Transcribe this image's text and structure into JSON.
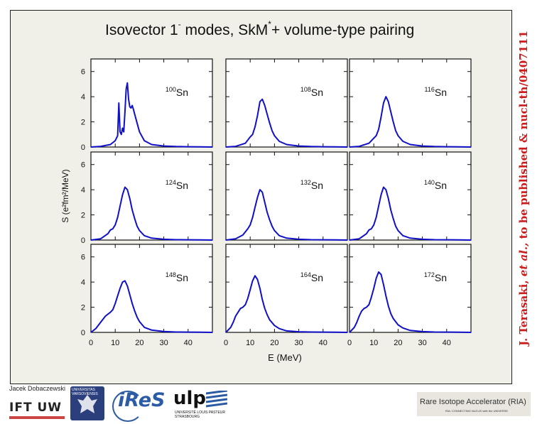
{
  "slide": {
    "title_main": "Isovector 1",
    "title_sup1": "-",
    "title_mid": " modes, SkM",
    "title_sup2": "*",
    "title_end": "+ volume-type pairing",
    "credit_prefix": "J. Terasaki, ",
    "credit_italic": "et al.,",
    "credit_suffix": " to be published & nucl-th/0407111",
    "author": "Jacek Dobaczewski"
  },
  "logos": {
    "ift": "IFT UW",
    "university": "UNIVERSITAS VARSOVIENSIS",
    "ires": "iReS",
    "ulp": "ulp",
    "ulp_sub": "UNIVERSITÉ LOUIS PASTEUR STRASBOURG",
    "ria": "Rare Isotope Accelerator (RIA)",
    "ria_sub": "RIA: CONNECTING NUCLEI with the UNIVERSE"
  },
  "colors": {
    "curve": "#1010c8",
    "credit": "#cc1b1b",
    "background": "#f0f0e8"
  },
  "chart_data": {
    "type": "line",
    "xlabel": "E (MeV)",
    "ylabel": "S (e²fm²/MeV)",
    "xlim": [
      0,
      50
    ],
    "ylim": [
      0,
      7
    ],
    "xticks": [
      0,
      10,
      20,
      30,
      40
    ],
    "yticks": [
      0,
      2,
      4,
      6
    ],
    "grid": false,
    "panels": [
      {
        "mass": "100",
        "element": "Sn",
        "x": [
          0,
          4,
          8,
          10,
          11,
          11.5,
          12,
          12.5,
          13,
          13.5,
          14,
          14.5,
          15,
          15.5,
          16,
          16.5,
          17,
          17.5,
          18,
          19,
          20,
          22,
          25,
          30,
          35,
          40,
          45,
          50
        ],
        "y": [
          0,
          0.05,
          0.2,
          0.5,
          0.9,
          3.5,
          1.2,
          1.0,
          1.5,
          1.2,
          2.8,
          4.6,
          5.1,
          3.8,
          3.2,
          3.1,
          3.3,
          3.0,
          2.6,
          1.9,
          1.2,
          0.5,
          0.2,
          0.08,
          0.04,
          0.02,
          0.01,
          0
        ]
      },
      {
        "mass": "108",
        "element": "Sn",
        "x": [
          0,
          4,
          8,
          10,
          11,
          12,
          13,
          14,
          15,
          16,
          17,
          18,
          19,
          20,
          22,
          25,
          30,
          35,
          40,
          45,
          50
        ],
        "y": [
          0,
          0.05,
          0.3,
          0.8,
          1.0,
          1.6,
          2.5,
          3.6,
          3.8,
          3.3,
          2.6,
          1.9,
          1.3,
          0.9,
          0.45,
          0.2,
          0.08,
          0.04,
          0.02,
          0.01,
          0
        ]
      },
      {
        "mass": "116",
        "element": "Sn",
        "x": [
          0,
          4,
          8,
          10,
          11,
          12,
          13,
          14,
          15,
          16,
          17,
          18,
          19,
          20,
          22,
          25,
          30,
          35,
          40,
          45,
          50
        ],
        "y": [
          0,
          0.05,
          0.3,
          0.7,
          0.9,
          1.4,
          2.4,
          3.5,
          4.0,
          3.6,
          2.8,
          2.0,
          1.3,
          0.9,
          0.45,
          0.2,
          0.08,
          0.04,
          0.02,
          0.01,
          0
        ]
      },
      {
        "mass": "124",
        "element": "Sn",
        "x": [
          0,
          4,
          7,
          8,
          9,
          10,
          11,
          12,
          13,
          14,
          15,
          16,
          17,
          18,
          19,
          20,
          22,
          25,
          30,
          35,
          40,
          45,
          50
        ],
        "y": [
          0,
          0.1,
          0.5,
          0.8,
          0.9,
          1.2,
          1.8,
          2.7,
          3.6,
          4.2,
          4.0,
          3.3,
          2.4,
          1.7,
          1.1,
          0.75,
          0.35,
          0.15,
          0.06,
          0.03,
          0.02,
          0.01,
          0
        ]
      },
      {
        "mass": "132",
        "element": "Sn",
        "x": [
          0,
          4,
          7,
          9,
          10,
          11,
          12,
          13,
          14,
          15,
          16,
          17,
          18,
          19,
          20,
          22,
          25,
          30,
          35,
          40,
          45,
          50
        ],
        "y": [
          0,
          0.1,
          0.4,
          0.9,
          1.2,
          1.8,
          2.6,
          3.4,
          4.0,
          3.8,
          3.0,
          2.2,
          1.6,
          1.1,
          0.75,
          0.35,
          0.15,
          0.06,
          0.03,
          0.02,
          0.01,
          0
        ]
      },
      {
        "mass": "140",
        "element": "Sn",
        "x": [
          0,
          4,
          7,
          8,
          9,
          10,
          11,
          12,
          13,
          14,
          15,
          16,
          17,
          18,
          19,
          20,
          22,
          25,
          30,
          35,
          40,
          45,
          50
        ],
        "y": [
          0,
          0.1,
          0.5,
          0.8,
          0.9,
          1.2,
          1.8,
          2.7,
          3.6,
          4.2,
          4.0,
          3.3,
          2.4,
          1.7,
          1.1,
          0.75,
          0.35,
          0.15,
          0.06,
          0.03,
          0.02,
          0.01,
          0
        ]
      },
      {
        "mass": "148",
        "element": "Sn",
        "x": [
          0,
          2,
          4,
          6,
          8,
          9,
          10,
          11,
          12,
          13,
          14,
          15,
          16,
          17,
          18,
          19,
          20,
          22,
          25,
          30,
          35,
          40,
          45,
          50
        ],
        "y": [
          0,
          0.3,
          0.8,
          1.3,
          1.6,
          1.8,
          2.3,
          2.9,
          3.5,
          4.0,
          4.1,
          3.7,
          3.0,
          2.3,
          1.7,
          1.2,
          0.85,
          0.4,
          0.18,
          0.07,
          0.03,
          0.02,
          0.01,
          0
        ]
      },
      {
        "mass": "164",
        "element": "Sn",
        "x": [
          0,
          2,
          3,
          4,
          5,
          6,
          7,
          8,
          9,
          10,
          11,
          12,
          13,
          14,
          15,
          16,
          17,
          18,
          20,
          22,
          25,
          30,
          35,
          40,
          45,
          50
        ],
        "y": [
          0,
          0.4,
          0.8,
          1.3,
          1.6,
          1.9,
          2.0,
          2.2,
          2.7,
          3.4,
          4.1,
          4.5,
          4.2,
          3.5,
          2.6,
          1.9,
          1.4,
          1.0,
          0.55,
          0.3,
          0.12,
          0.05,
          0.03,
          0.02,
          0.01,
          0
        ]
      },
      {
        "mass": "172",
        "element": "Sn",
        "x": [
          0,
          2,
          3,
          4,
          5,
          6,
          7,
          8,
          9,
          10,
          11,
          12,
          13,
          14,
          15,
          16,
          17,
          18,
          20,
          22,
          25,
          30,
          35,
          40,
          45,
          50
        ],
        "y": [
          0,
          0.4,
          0.8,
          1.3,
          1.7,
          1.9,
          2.0,
          2.2,
          2.8,
          3.5,
          4.3,
          4.8,
          4.6,
          3.8,
          2.9,
          2.1,
          1.5,
          1.1,
          0.6,
          0.35,
          0.15,
          0.06,
          0.03,
          0.02,
          0.01,
          0
        ]
      }
    ]
  }
}
